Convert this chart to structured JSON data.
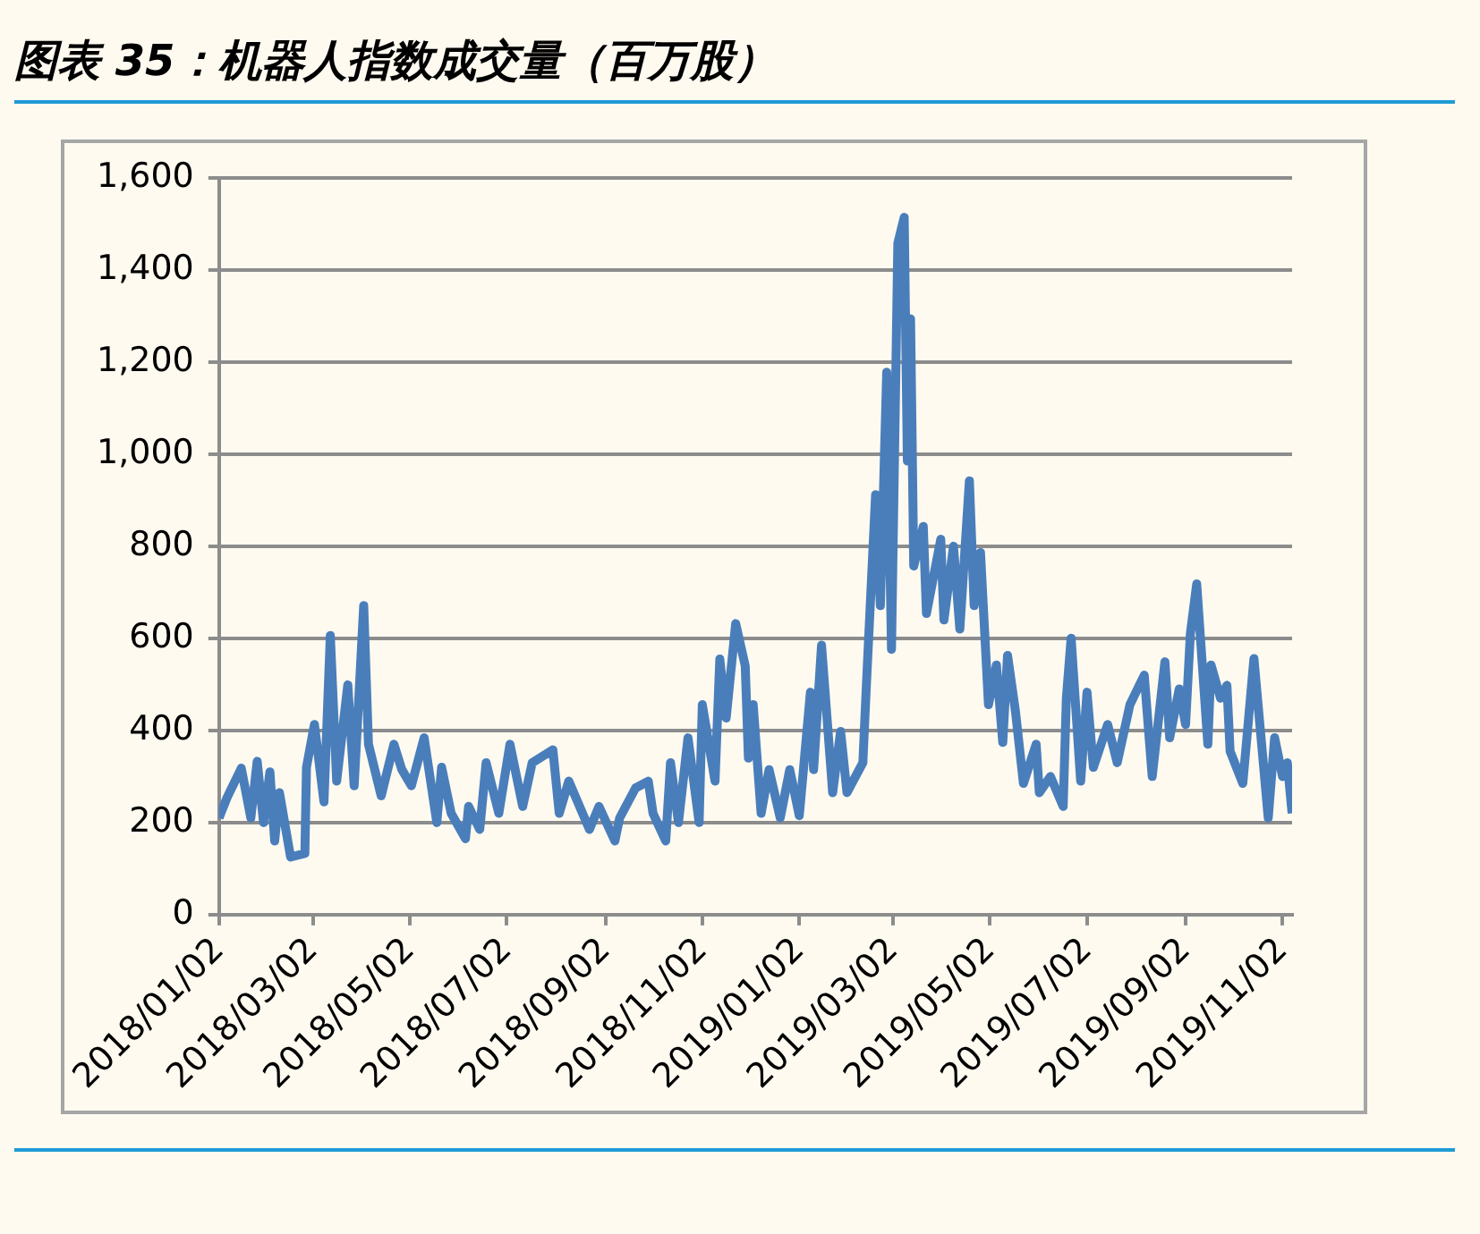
{
  "chart_data": {
    "type": "line",
    "title": "图表 35：机器人指数成交量（百万股）",
    "series": [
      {
        "color": "#4a7ebb",
        "x": [
          "2018-01-02",
          "2018-01-07",
          "2018-01-16",
          "2018-01-22",
          "2018-01-26",
          "2018-01-30",
          "2018-02-03",
          "2018-02-06",
          "2018-02-09",
          "2018-02-16",
          "2018-02-25",
          "2018-02-26",
          "2018-03-03",
          "2018-03-09",
          "2018-03-13",
          "2018-03-17",
          "2018-03-24",
          "2018-03-28",
          "2018-04-03",
          "2018-04-06",
          "2018-04-14",
          "2018-04-22",
          "2018-04-27",
          "2018-05-03",
          "2018-05-11",
          "2018-05-19",
          "2018-05-22",
          "2018-05-28",
          "2018-06-06",
          "2018-06-08",
          "2018-06-15",
          "2018-06-19",
          "2018-06-27",
          "2018-07-04",
          "2018-07-12",
          "2018-07-18",
          "2018-07-31",
          "2018-08-04",
          "2018-08-10",
          "2018-08-23",
          "2018-08-29",
          "2018-09-08",
          "2018-09-11",
          "2018-09-21",
          "2018-09-29",
          "2018-10-02",
          "2018-10-10",
          "2018-10-13",
          "2018-10-18",
          "2018-10-24",
          "2018-10-31",
          "2018-11-02",
          "2018-11-10",
          "2018-11-13",
          "2018-11-17",
          "2018-11-23",
          "2018-11-29",
          "2018-12-01",
          "2018-12-04",
          "2018-12-09",
          "2018-12-14",
          "2018-12-21",
          "2018-12-27",
          "2019-01-02",
          "2019-01-09",
          "2019-01-11",
          "2019-01-16",
          "2019-01-23",
          "2019-01-28",
          "2019-02-01",
          "2019-02-11",
          "2019-02-13",
          "2019-02-19",
          "2019-02-22",
          "2019-02-26",
          "2019-03-01",
          "2019-03-05",
          "2019-03-09",
          "2019-03-11",
          "2019-03-13",
          "2019-03-15",
          "2019-03-21",
          "2019-03-23",
          "2019-04-01",
          "2019-04-03",
          "2019-04-09",
          "2019-04-13",
          "2019-04-19",
          "2019-04-22",
          "2019-04-26",
          "2019-05-01",
          "2019-05-06",
          "2019-05-10",
          "2019-05-13",
          "2019-05-18",
          "2019-05-23",
          "2019-05-31",
          "2019-06-02",
          "2019-06-09",
          "2019-06-17",
          "2019-06-19",
          "2019-06-22",
          "2019-06-28",
          "2019-07-02",
          "2019-07-06",
          "2019-07-15",
          "2019-07-21",
          "2019-07-29",
          "2019-08-07",
          "2019-08-12",
          "2019-08-20",
          "2019-08-23",
          "2019-08-29",
          "2019-09-02",
          "2019-09-05",
          "2019-09-09",
          "2019-09-16",
          "2019-09-18",
          "2019-09-24",
          "2019-09-28",
          "2019-09-30",
          "2019-10-08",
          "2019-10-15",
          "2019-10-24",
          "2019-10-28",
          "2019-11-02",
          "2019-11-05",
          "2019-11-08"
        ],
        "values": [
          210,
          254,
          318,
          210,
          333,
          200,
          310,
          160,
          265,
          125,
          133,
          320,
          413,
          245,
          606,
          290,
          499,
          280,
          671,
          370,
          258,
          370,
          315,
          280,
          384,
          200,
          320,
          220,
          165,
          235,
          185,
          330,
          220,
          370,
          235,
          330,
          358,
          220,
          290,
          185,
          235,
          160,
          210,
          275,
          290,
          220,
          160,
          330,
          200,
          384,
          200,
          456,
          290,
          555,
          427,
          632,
          540,
          340,
          456,
          220,
          315,
          210,
          315,
          215,
          483,
          315,
          585,
          265,
          398,
          265,
          330,
          483,
          912,
          671,
          1178,
          576,
          1458,
          1514,
          985,
          1294,
          757,
          843,
          654,
          815,
          640,
          800,
          620,
          942,
          671,
          786,
          456,
          542,
          374,
          563,
          441,
          285,
          370,
          265,
          300,
          235,
          470,
          600,
          290,
          483,
          320,
          413,
          330,
          456,
          520,
          300,
          549,
          384,
          490,
          413,
          610,
          718,
          370,
          542,
          470,
          498,
          355,
          285,
          556,
          210,
          384,
          300,
          330,
          220
        ]
      }
    ],
    "xlim": [
      "2018-01-02",
      "2019-11-08"
    ],
    "xticks": [
      {
        "value": "2018-01-02",
        "label": "2018/01/02"
      },
      {
        "value": "2018-03-02",
        "label": "2018/03/02"
      },
      {
        "value": "2018-05-02",
        "label": "2018/05/02"
      },
      {
        "value": "2018-07-02",
        "label": "2018/07/02"
      },
      {
        "value": "2018-09-02",
        "label": "2018/09/02"
      },
      {
        "value": "2018-11-02",
        "label": "2018/11/02"
      },
      {
        "value": "2019-01-02",
        "label": "2019/01/02"
      },
      {
        "value": "2019-03-02",
        "label": "2019/03/02"
      },
      {
        "value": "2019-05-02",
        "label": "2019/05/02"
      },
      {
        "value": "2019-07-02",
        "label": "2019/07/02"
      },
      {
        "value": "2019-09-02",
        "label": "2019/09/02"
      },
      {
        "value": "2019-11-02",
        "label": "2019/11/02"
      }
    ],
    "ylim": [
      0,
      1600
    ],
    "yticks": [
      0,
      200,
      400,
      600,
      800,
      {
        "value": 1000,
        "label": "1,000"
      },
      {
        "value": 1200,
        "label": "1,200"
      },
      {
        "value": 1400,
        "label": "1,400"
      },
      {
        "value": 1600,
        "label": "1,600"
      }
    ],
    "grid": "y",
    "legend": false,
    "marker": "none",
    "line_style": "solid"
  }
}
